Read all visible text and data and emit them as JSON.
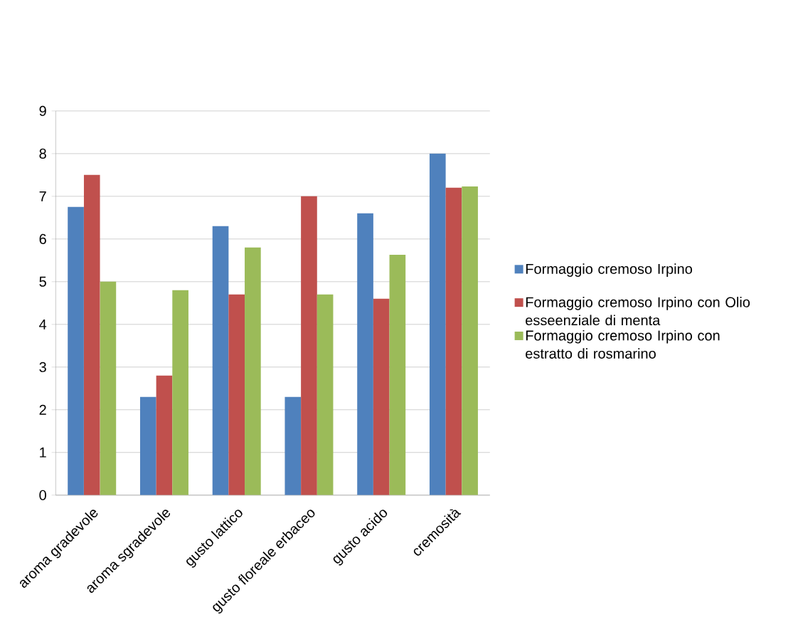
{
  "chart_data": {
    "type": "bar",
    "categories": [
      "aroma gradevole",
      "aroma sgradevole",
      "gusto lattico",
      "gusto floreale erbaceo",
      "gusto acido",
      "cremosità"
    ],
    "series": [
      {
        "name": "Formaggio cremoso Irpino",
        "color": "#4f81bd",
        "values": [
          6.75,
          2.3,
          6.3,
          2.3,
          6.6,
          8.0
        ]
      },
      {
        "name": "Formaggio cremoso Irpino con Olio esseenziale di menta",
        "color": "#c0504d",
        "values": [
          7.5,
          2.8,
          4.7,
          7.0,
          4.6,
          7.2
        ]
      },
      {
        "name": "Formaggio cremoso Irpino con estratto di rosmarino",
        "color": "#9bbb59",
        "values": [
          5.0,
          4.8,
          5.8,
          4.7,
          5.63,
          7.23
        ]
      }
    ],
    "ylim": [
      0,
      9
    ],
    "yticks": [
      0,
      1,
      2,
      3,
      4,
      5,
      6,
      7,
      8,
      9
    ],
    "grid": "y",
    "legend": "right"
  }
}
